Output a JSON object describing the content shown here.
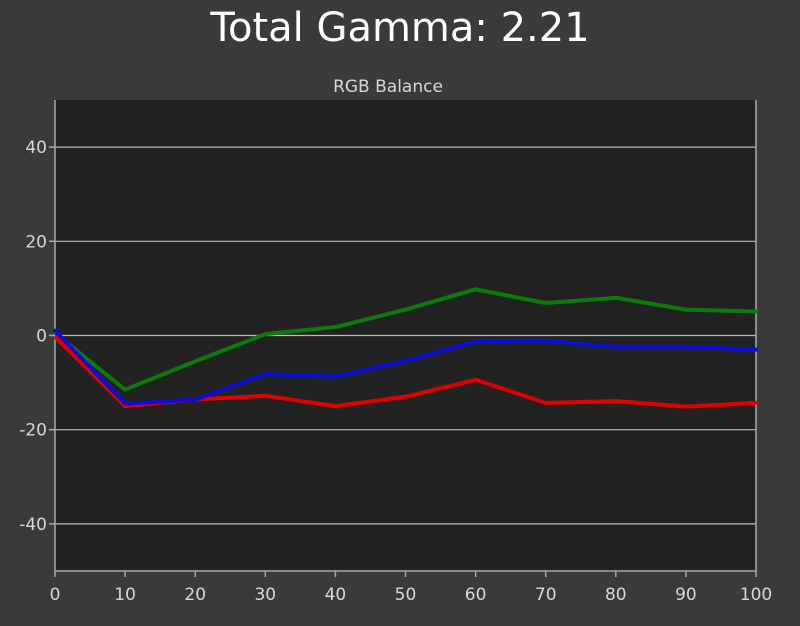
{
  "header": {
    "title": "Total Gamma: 2.21"
  },
  "chart_data": {
    "type": "line",
    "title": "RGB Balance",
    "xlabel": "",
    "ylabel": "",
    "x": [
      0,
      10,
      20,
      30,
      40,
      50,
      60,
      70,
      80,
      90,
      100
    ],
    "xlim": [
      0,
      100
    ],
    "ylim": [
      -50,
      50
    ],
    "xticks": [
      "0",
      "10",
      "20",
      "30",
      "40",
      "50",
      "60",
      "70",
      "80",
      "90",
      "100"
    ],
    "yticks": [
      {
        "value": 40,
        "label": "40"
      },
      {
        "value": 20,
        "label": "20"
      },
      {
        "value": 0,
        "label": "0"
      },
      {
        "value": -20,
        "label": "-20"
      },
      {
        "value": -40,
        "label": "-40"
      }
    ],
    "grid": "horizontal",
    "legend": "none",
    "series": [
      {
        "key": "green",
        "color": "#0c7a0c",
        "values": [
          0.5,
          -11.5,
          -5.5,
          0.3,
          1.8,
          5.5,
          9.8,
          6.9,
          8.0,
          5.5,
          5.1
        ]
      },
      {
        "key": "red",
        "color": "#e00000",
        "values": [
          -0.3,
          -15.0,
          -13.6,
          -12.8,
          -15.0,
          -13.0,
          -9.4,
          -14.3,
          -13.9,
          -15.1,
          -14.3
        ]
      },
      {
        "key": "blue",
        "color": "#0d0dd8",
        "values": [
          1.0,
          -14.5,
          -13.6,
          -8.2,
          -8.7,
          -5.4,
          -1.2,
          -1.1,
          -2.4,
          -2.4,
          -3.0
        ]
      }
    ]
  },
  "colors": {
    "page_background": "#3a3a3a",
    "plot_background": "#222222",
    "gridline": "#bdbdbd",
    "axis_frame": "#a9a9a9",
    "text": "#d8d8d8"
  }
}
